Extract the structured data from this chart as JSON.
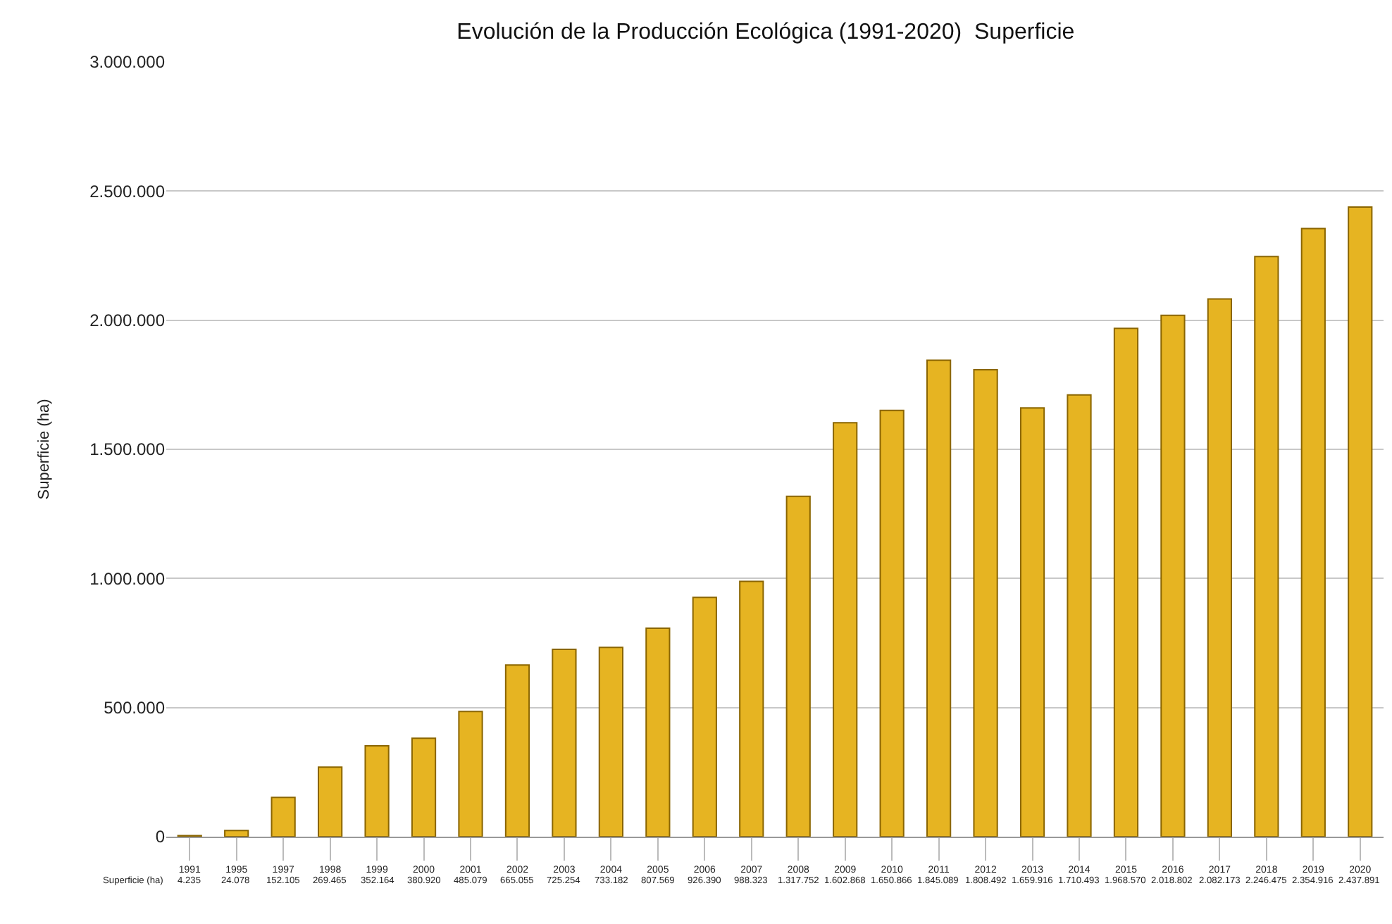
{
  "chart_data": {
    "type": "bar",
    "title": "Evolución de la Producción Ecológica (1991-2020)  Superficie",
    "ylabel": "Superficie (ha)",
    "categories": [
      "1991",
      "1995",
      "1997",
      "1998",
      "1999",
      "2000",
      "2001",
      "2002",
      "2003",
      "2004",
      "2005",
      "2006",
      "2007",
      "2008",
      "2009",
      "2010",
      "2011",
      "2012",
      "2013",
      "2014",
      "2015",
      "2016",
      "2017",
      "2018",
      "2019",
      "2020"
    ],
    "series": [
      {
        "name": "Superficie (ha)",
        "color": "#e6b422",
        "values": [
          4235,
          24078,
          152105,
          269465,
          352164,
          380920,
          485079,
          665055,
          725254,
          733182,
          807569,
          926390,
          988323,
          1317752,
          1602868,
          1650866,
          1845089,
          1808492,
          1659916,
          1710493,
          1968570,
          2018802,
          2082173,
          2246475,
          2354916,
          2437891
        ],
        "value_labels": [
          "4.235",
          "24.078",
          "152.105",
          "269.465",
          "352.164",
          "380.920",
          "485.079",
          "665.055",
          "725.254",
          "733.182",
          "807.569",
          "926.390",
          "988.323",
          "1.317.752",
          "1.602.868",
          "1.650.866",
          "1.845.089",
          "1.808.492",
          "1.659.916",
          "1.710.493",
          "1.968.570",
          "2.018.802",
          "2.082.173",
          "2.246.475",
          "2.354.916",
          "2.437.891"
        ]
      }
    ],
    "ylim": [
      0,
      3000000
    ],
    "yticks": [
      {
        "value": 0,
        "label": "0"
      },
      {
        "value": 500000,
        "label": "500.000"
      },
      {
        "value": 1000000,
        "label": "1.000.000"
      },
      {
        "value": 1500000,
        "label": "1.500.000"
      },
      {
        "value": 2000000,
        "label": "2.000.000"
      },
      {
        "value": 2500000,
        "label": "2.500.000"
      },
      {
        "value": 3000000,
        "label": "3.000.000"
      }
    ],
    "grid": "y",
    "legend": false
  }
}
